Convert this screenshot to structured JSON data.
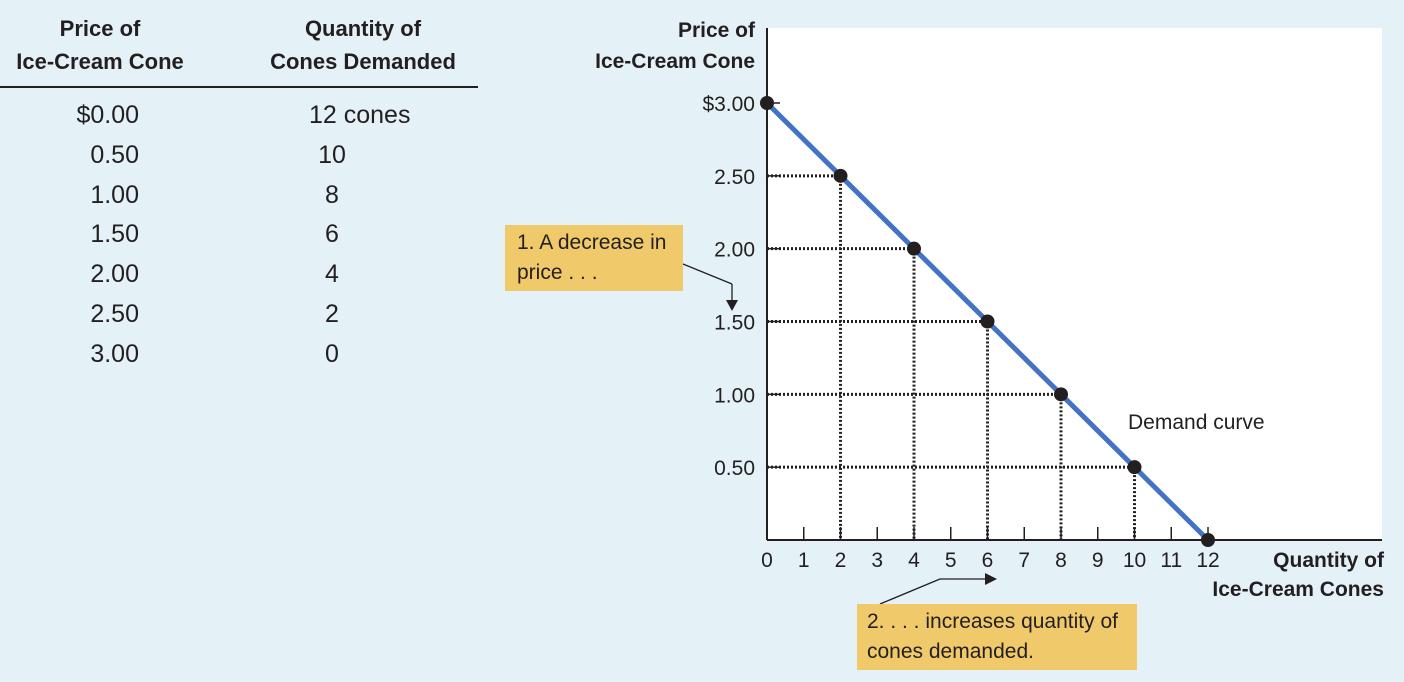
{
  "table": {
    "headers": {
      "price": [
        "Price of",
        "Ice-Cream Cone"
      ],
      "quantity": [
        "Quantity of",
        "Cones Demanded"
      ]
    },
    "rows": [
      {
        "price": "$0.00",
        "quantity": "12 cones"
      },
      {
        "price": "0.50",
        "quantity": "10"
      },
      {
        "price": "1.00",
        "quantity": "8"
      },
      {
        "price": "1.50",
        "quantity": "6"
      },
      {
        "price": "2.00",
        "quantity": "4"
      },
      {
        "price": "2.50",
        "quantity": "2"
      },
      {
        "price": "3.00",
        "quantity": "0"
      }
    ]
  },
  "callouts": {
    "price_decrease": [
      "1. A decrease in",
      "price . . ."
    ],
    "quantity_increase": [
      "2. . . . increases quantity of",
      "cones demanded."
    ]
  },
  "colors": {
    "background": "#e4f2f7",
    "plot_background": "#ffffff",
    "curve": "#4472c4",
    "callout": "#f0ca6a",
    "ink": "#231f20"
  },
  "chart_data": {
    "type": "line",
    "title": "",
    "xlabel": [
      "Quantity of",
      "Ice-Cream Cones"
    ],
    "ylabel": [
      "Price of",
      "Ice-Cream Cone"
    ],
    "x": [
      0,
      2,
      4,
      6,
      8,
      10,
      12
    ],
    "y": [
      3.0,
      2.5,
      2.0,
      1.5,
      1.0,
      0.5,
      0.0
    ],
    "xlim": [
      0,
      12
    ],
    "ylim": [
      0,
      3.0
    ],
    "x_ticks": [
      0,
      1,
      2,
      3,
      4,
      5,
      6,
      7,
      8,
      9,
      10,
      11,
      12
    ],
    "x_tick_labels": [
      "0",
      "1",
      "2",
      "3",
      "4",
      "5",
      "6",
      "7",
      "8",
      "9",
      "10",
      "11",
      "12"
    ],
    "y_ticks": [
      0.5,
      1.0,
      1.5,
      2.0,
      2.5,
      3.0
    ],
    "y_tick_labels": [
      "0.50",
      "1.00",
      "1.50",
      "2.00",
      "2.50",
      "$3.00"
    ],
    "series": [
      {
        "name": "Demand curve",
        "color": "#4472c4"
      }
    ],
    "dotted_guides": true,
    "grid": false,
    "legend": "none"
  }
}
